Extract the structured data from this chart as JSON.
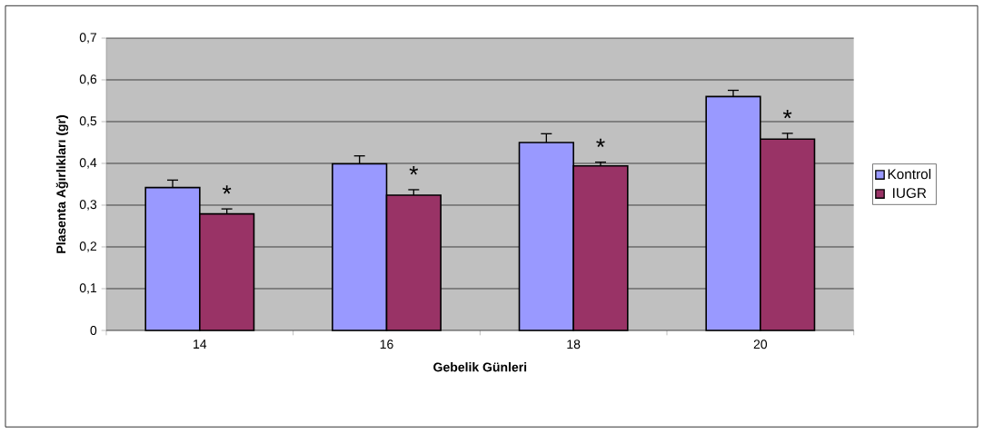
{
  "chart_data": {
    "type": "bar",
    "xlabel": "Gebelik Günleri",
    "ylabel": "Plasenta Ağırlıkları (gr)",
    "categories": [
      "14",
      "16",
      "18",
      "20"
    ],
    "series": [
      {
        "name": "Kontrol",
        "color": "#9999ff",
        "values": [
          0.342,
          0.399,
          0.45,
          0.56
        ],
        "errors": [
          0.018,
          0.019,
          0.021,
          0.015
        ]
      },
      {
        "name": "IUGR",
        "color": "#993366",
        "values": [
          0.279,
          0.324,
          0.394,
          0.458
        ],
        "errors": [
          0.012,
          0.013,
          0.009,
          0.014
        ]
      }
    ],
    "ylim": [
      0,
      0.7
    ],
    "yticks": [
      0,
      {
        "value": 0.1,
        "label": "0,1"
      },
      {
        "value": 0.2,
        "label": "0,2"
      },
      {
        "value": 0.3,
        "label": "0,3"
      },
      {
        "value": 0.4,
        "label": "0,4"
      },
      {
        "value": 0.5,
        "label": "0,5"
      },
      {
        "value": 0.6,
        "label": "0,6"
      },
      {
        "value": 0.7,
        "label": "0,7"
      }
    ],
    "annotations": [
      "*",
      "*",
      "*",
      "*"
    ],
    "grid": "y",
    "legend": "right"
  }
}
